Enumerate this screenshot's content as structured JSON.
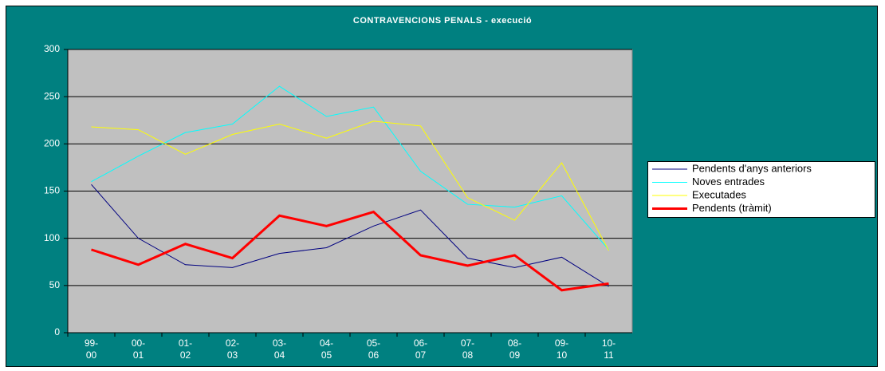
{
  "chart_data": {
    "type": "line",
    "title": "CONTRAVENCIONS PENALS - execució",
    "categories": [
      "99-00",
      "00-01",
      "01-02",
      "02-03",
      "03-04",
      "04-05",
      "05-06",
      "06-07",
      "07-08",
      "08-09",
      "09-10",
      "10-11"
    ],
    "series": [
      {
        "name": "Pendents d'anys anteriors",
        "color": "#000080",
        "values": [
          157,
          100,
          72,
          69,
          84,
          90,
          113,
          130,
          79,
          69,
          80,
          49
        ]
      },
      {
        "name": "Noves entrades",
        "color": "#00ffff",
        "values": [
          160,
          187,
          212,
          221,
          261,
          229,
          239,
          171,
          136,
          133,
          145,
          88
        ]
      },
      {
        "name": "Executades",
        "color": "#ffff00",
        "values": [
          218,
          215,
          189,
          210,
          221,
          206,
          224,
          219,
          143,
          119,
          180,
          87
        ]
      },
      {
        "name": "Pendents (tràmit)",
        "color": "#ff0000",
        "values": [
          88,
          72,
          94,
          79,
          124,
          113,
          128,
          82,
          71,
          82,
          45,
          52
        ]
      }
    ],
    "ylim": [
      0,
      300
    ],
    "yticks": [
      0,
      50,
      100,
      150,
      200,
      250,
      300
    ],
    "grid": true,
    "legend": "right"
  }
}
